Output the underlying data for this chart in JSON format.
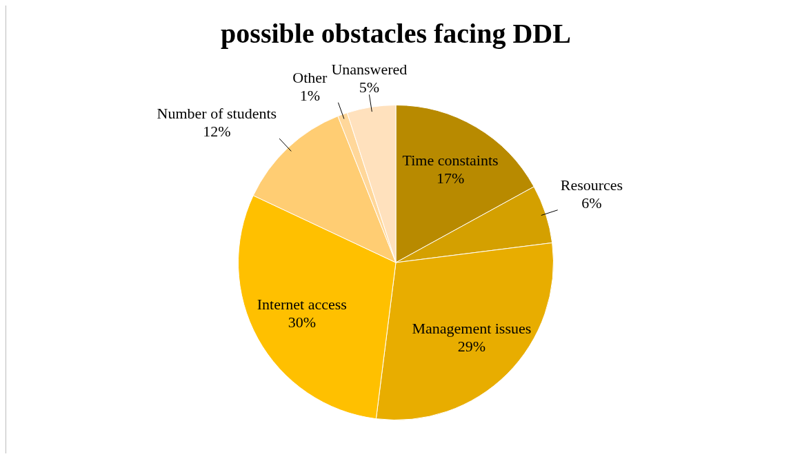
{
  "chart_data": {
    "type": "pie",
    "title": "possible obstacles facing DDL",
    "categories": [
      "Time constaints",
      "Resources",
      "Management issues",
      "Internet access",
      "Number of students",
      "Other",
      "Unanswered"
    ],
    "values": [
      17,
      6,
      29,
      30,
      12,
      1,
      5
    ],
    "colors": [
      "#b88a00",
      "#d4a000",
      "#e8ad00",
      "#ffc000",
      "#ffcd73",
      "#ffd79a",
      "#ffe1bd"
    ],
    "value_labels": [
      "17%",
      "6%",
      "29%",
      "30%",
      "12%",
      "1%",
      "5%"
    ],
    "legend": false
  }
}
